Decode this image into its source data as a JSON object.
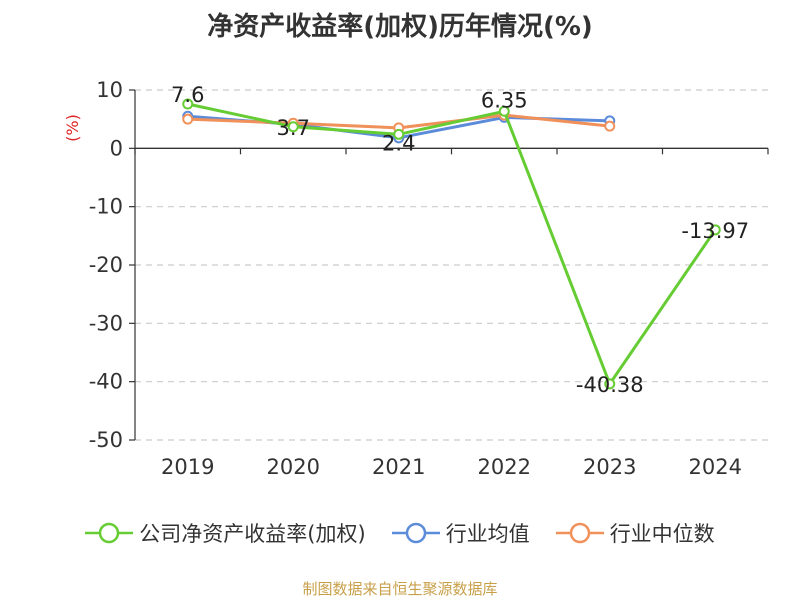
{
  "title": "净资产收益率(加权)历年情况(%)",
  "source": "制图数据来自恒生聚源数据库",
  "chart_data": {
    "type": "line",
    "title": "净资产收益率(加权)历年情况(%)",
    "ylabel": "(%)",
    "xlabel": "",
    "categories": [
      "2019",
      "2020",
      "2021",
      "2022",
      "2023",
      "2024"
    ],
    "ylim": [
      -50,
      10
    ],
    "yticks": [
      10,
      0,
      -10,
      -20,
      -30,
      -40,
      -50
    ],
    "grid": "horizontal-dashed",
    "legend_position": "bottom",
    "series": [
      {
        "name": "公司净资产收益率(加权)",
        "color": "#66cc33",
        "values": [
          7.6,
          3.7,
          2.4,
          6.35,
          -40.38,
          -13.97
        ],
        "labels": [
          "7.6",
          "3.7",
          "2.4",
          "6.35",
          "-40.38",
          "-13.97"
        ]
      },
      {
        "name": "行业均值",
        "color": "#5b8bd9",
        "values": [
          5.5,
          4.1,
          1.8,
          5.3,
          4.7,
          null
        ]
      },
      {
        "name": "行业中位数",
        "color": "#f0905a",
        "values": [
          5.0,
          4.3,
          3.5,
          5.7,
          3.8,
          null
        ]
      }
    ]
  }
}
